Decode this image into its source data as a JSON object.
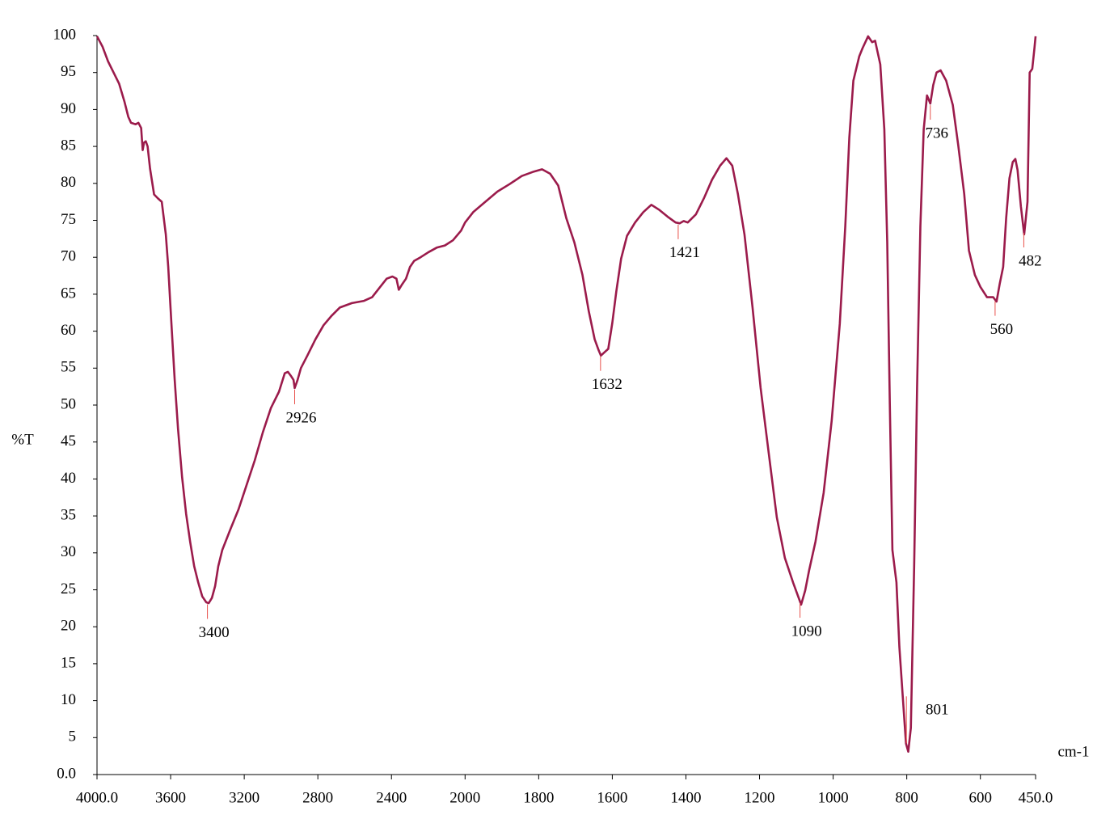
{
  "chart_data": {
    "type": "line",
    "y_label": "%T",
    "x_label": "cm-1",
    "x_expand_below": 2000,
    "xlim": [
      4000,
      450
    ],
    "ylim": [
      0,
      100
    ],
    "xticks": [
      {
        "value": 4000,
        "label": "4000.0"
      },
      3600,
      3200,
      2800,
      2400,
      2000,
      1800,
      1600,
      1400,
      1200,
      1000,
      800,
      600,
      {
        "value": 450,
        "label": "450.0"
      }
    ],
    "yticks": [
      {
        "value": 0,
        "label": "0.0"
      },
      5,
      10,
      15,
      20,
      25,
      30,
      35,
      40,
      45,
      50,
      55,
      60,
      65,
      70,
      75,
      80,
      85,
      90,
      95,
      100
    ],
    "color": "#9b1b4b",
    "annotation_color": "#e8504a",
    "x": [
      4000,
      3970,
      3940,
      3910,
      3880,
      3850,
      3830,
      3815,
      3790,
      3775,
      3760,
      3752,
      3745,
      3735,
      3725,
      3712,
      3690,
      3670,
      3648,
      3626,
      3613,
      3596,
      3578,
      3560,
      3538,
      3516,
      3494,
      3472,
      3450,
      3428,
      3406,
      3393,
      3376,
      3358,
      3341,
      3319,
      3275,
      3231,
      3187,
      3143,
      3099,
      3055,
      3011,
      2980,
      2963,
      2945,
      2932,
      2926,
      2910,
      2892,
      2857,
      2813,
      2769,
      2725,
      2681,
      2615,
      2549,
      2505,
      2461,
      2426,
      2395,
      2373,
      2360,
      2343,
      2321,
      2299,
      2277,
      2242,
      2198,
      2154,
      2110,
      2066,
      2022,
      2000,
      1978,
      1945,
      1912,
      1879,
      1846,
      1813,
      1791,
      1769,
      1747,
      1725,
      1703,
      1681,
      1664,
      1648,
      1637,
      1631,
      1620,
      1611,
      1600,
      1589,
      1576,
      1560,
      1538,
      1516,
      1494,
      1472,
      1450,
      1428,
      1417,
      1406,
      1395,
      1373,
      1351,
      1329,
      1307,
      1290,
      1274,
      1259,
      1241,
      1219,
      1197,
      1175,
      1153,
      1131,
      1109,
      1087,
      1076,
      1065,
      1048,
      1026,
      1004,
      982,
      967,
      956,
      945,
      929,
      920,
      905,
      894,
      886,
      872,
      861,
      853,
      846,
      839,
      828,
      820,
      811,
      802,
      796,
      789,
      780,
      772,
      763,
      754,
      745,
      736,
      728,
      719,
      708,
      693,
      675,
      660,
      644,
      631,
      615,
      600,
      582,
      565,
      556,
      547,
      538,
      530,
      521,
      512,
      505,
      499,
      490,
      481,
      472,
      466,
      459,
      453,
      450
    ],
    "values": [
      99.9,
      98.5,
      96.5,
      95,
      93.5,
      91,
      89,
      88.2,
      88,
      88.2,
      87.5,
      84.5,
      85.5,
      85.7,
      85,
      82,
      78.5,
      78,
      77.5,
      73.1,
      68.7,
      61.1,
      53.4,
      46.8,
      40.3,
      35.3,
      31.5,
      28.2,
      26.0,
      24.1,
      23.3,
      23.2,
      23.9,
      25.5,
      28.2,
      30.4,
      33.2,
      35.9,
      39.2,
      42.5,
      46.3,
      49.6,
      51.8,
      54.3,
      54.5,
      53.9,
      53.4,
      52.3,
      53.4,
      55.0,
      56.7,
      58.9,
      60.8,
      62.1,
      63.2,
      63.8,
      64.1,
      64.6,
      66.0,
      67.1,
      67.4,
      67.1,
      65.6,
      66.3,
      67.1,
      68.7,
      69.5,
      70.0,
      70.7,
      71.3,
      71.6,
      72.3,
      73.6,
      74.7,
      76.1,
      77.5,
      78.9,
      79.9,
      81.0,
      81.6,
      81.9,
      81.3,
      79.7,
      75.3,
      72.0,
      67.6,
      62.7,
      58.9,
      57.4,
      56.7,
      57.2,
      57.6,
      61.1,
      65.4,
      69.8,
      72.9,
      74.7,
      76.1,
      77.1,
      76.4,
      75.5,
      74.7,
      74.6,
      74.9,
      74.7,
      75.8,
      78.0,
      80.5,
      82.4,
      83.4,
      82.4,
      78.6,
      73.1,
      63.2,
      52.3,
      43.5,
      34.8,
      29.3,
      26.0,
      23.0,
      24.9,
      27.7,
      31.5,
      38.1,
      47.9,
      61.0,
      74.2,
      86.2,
      93.9,
      97.2,
      98.3,
      99.9,
      99.1,
      99.3,
      96.1,
      87.3,
      72.0,
      50.1,
      30.4,
      26.0,
      17.3,
      10.7,
      4.2,
      3.1,
      6.3,
      28.2,
      52.3,
      74.2,
      87.3,
      91.9,
      90.8,
      93.3,
      95.0,
      95.3,
      93.9,
      90.6,
      85.1,
      78.6,
      70.9,
      67.6,
      66.0,
      64.6,
      64.6,
      64.0,
      66.5,
      68.7,
      75.3,
      80.7,
      82.9,
      83.3,
      81.8,
      76.9,
      73.1,
      77.5,
      95.0,
      95.5,
      98.3,
      99.9
    ],
    "peaks": [
      3400,
      2926,
      1632,
      1421,
      1090,
      801,
      736,
      560,
      482
    ]
  }
}
